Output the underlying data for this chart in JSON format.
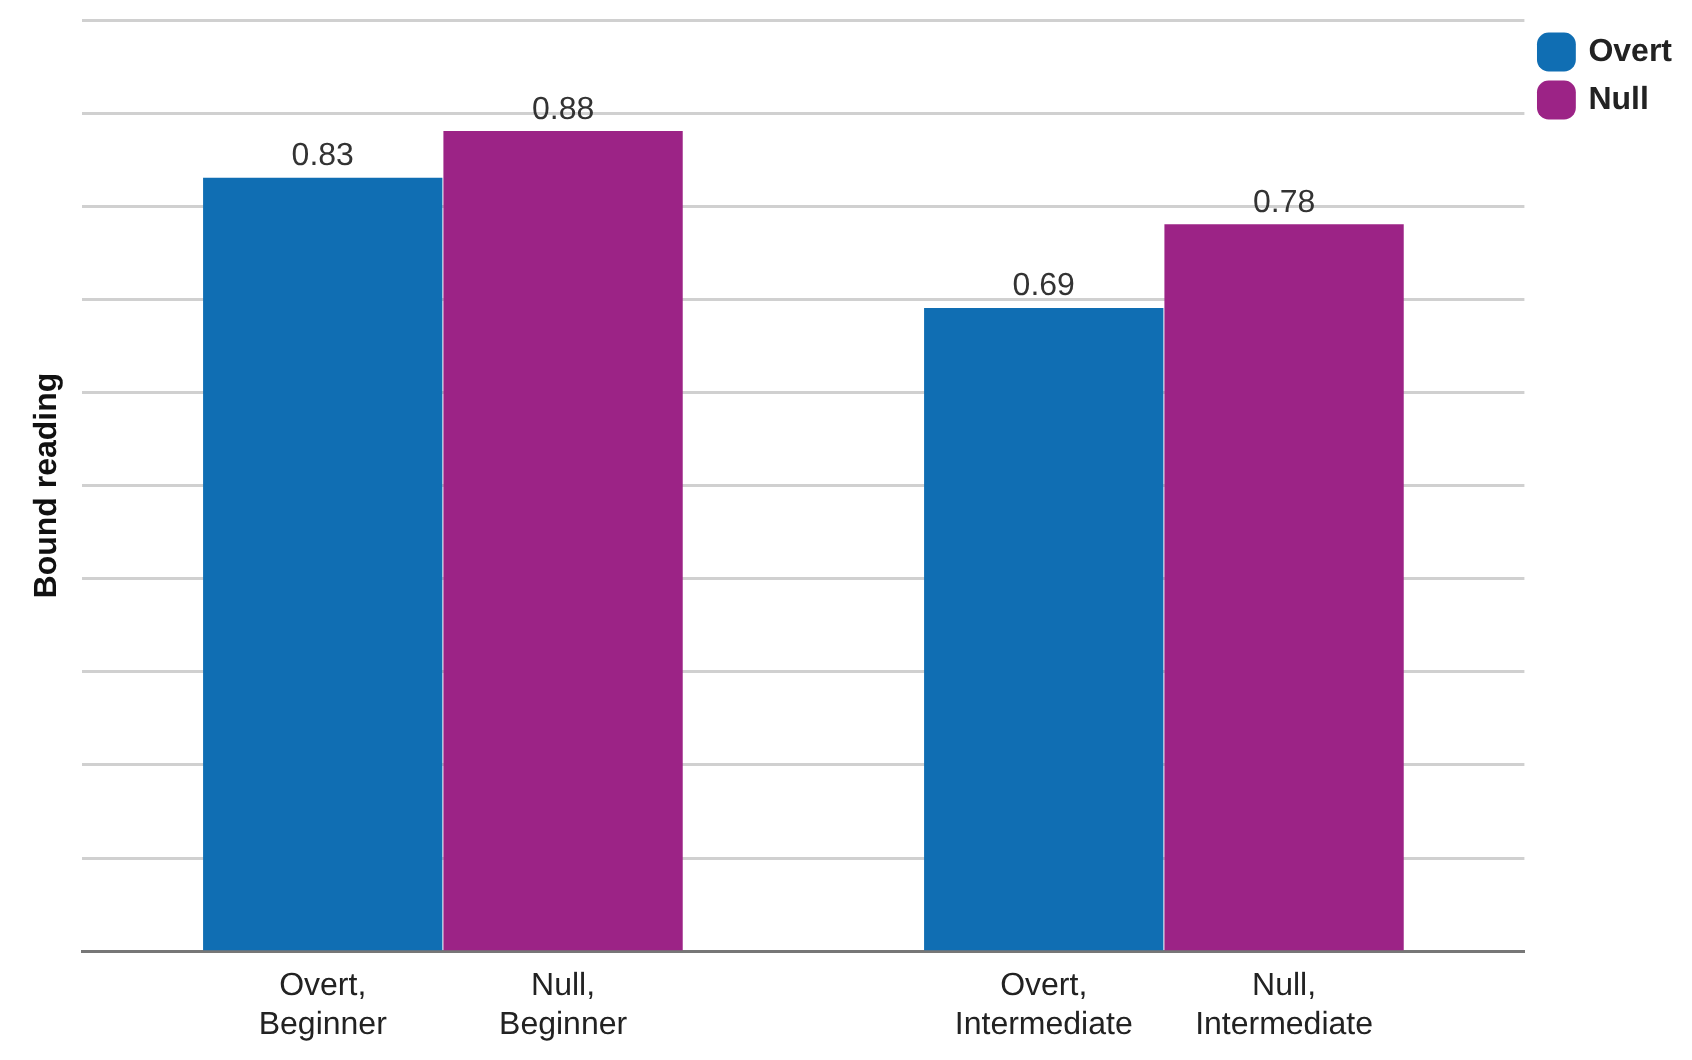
{
  "chart_data": {
    "type": "bar",
    "ylabel": "Bound reading",
    "categories": [
      "Overt, Beginner",
      "Null, Beginner",
      null,
      "Overt, Intermediate",
      "Null, Intermediate"
    ],
    "series": [
      {
        "name": "Overt",
        "color": "#106eb3",
        "values": [
          0.83,
          null,
          null,
          0.69,
          null
        ]
      },
      {
        "name": "Null",
        "color": "#9c2386",
        "values": [
          null,
          0.88,
          null,
          null,
          0.78
        ]
      }
    ],
    "ylim": [
      0,
      1
    ],
    "yticks": [
      {
        "value": 0,
        "label": null
      },
      {
        "value": 0.1,
        "label": null
      },
      {
        "value": 0.2,
        "label": null
      },
      {
        "value": 0.3,
        "label": null
      },
      {
        "value": 0.4,
        "label": null
      },
      {
        "value": 0.5,
        "label": null
      },
      {
        "value": 0.6,
        "label": null
      },
      {
        "value": 0.7,
        "label": null
      },
      {
        "value": 0.8,
        "label": null
      },
      {
        "value": 0.9,
        "label": null
      },
      {
        "value": 1,
        "label": null
      }
    ],
    "grid": "y",
    "legend": "top right",
    "tick_labels": "x",
    "data_labels": true
  }
}
